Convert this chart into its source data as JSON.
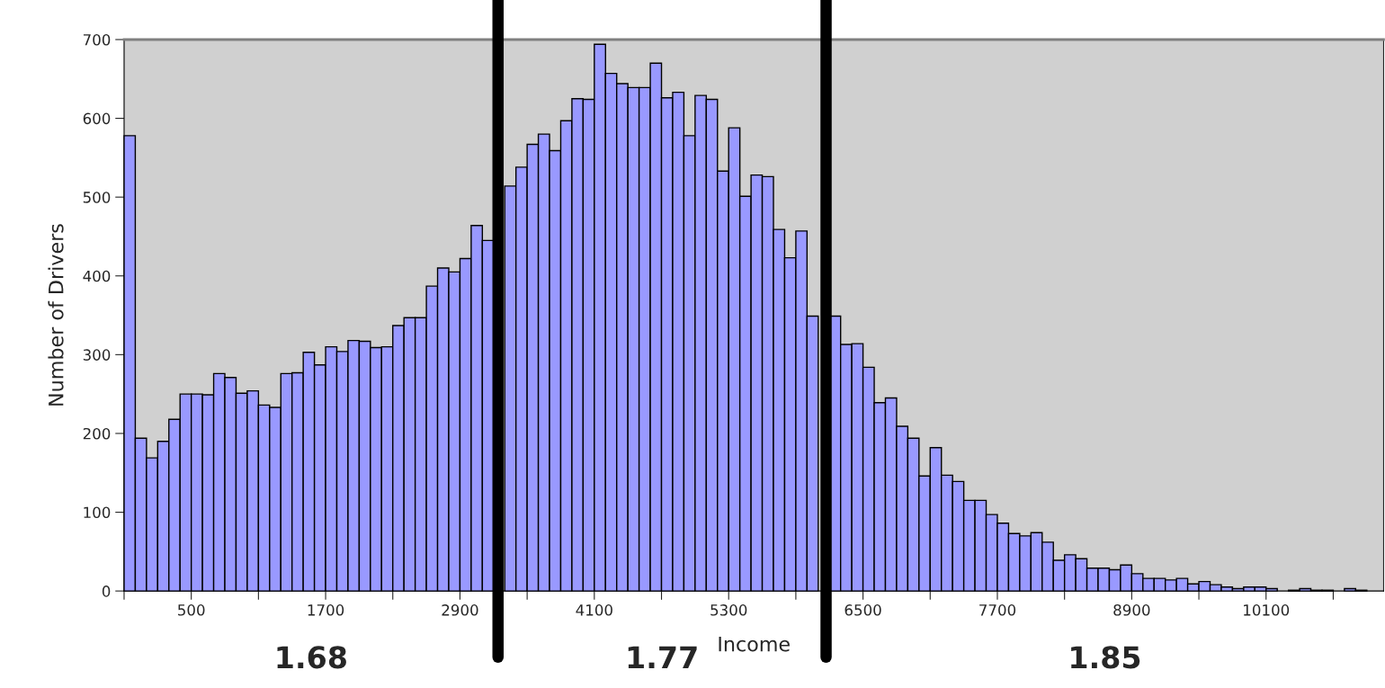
{
  "chart_data": {
    "type": "histogram",
    "xlabel": "Income",
    "ylabel": "Number of Drivers",
    "color": "#9999ff",
    "bins": [
      -100,
      0,
      100,
      200,
      300,
      400,
      500,
      600,
      700,
      800,
      900,
      1000,
      1100,
      1200,
      1300,
      1400,
      1500,
      1600,
      1700,
      1800,
      1900,
      2000,
      2100,
      2200,
      2300,
      2400,
      2500,
      2600,
      2700,
      2800,
      2900,
      3000,
      3100,
      3200,
      3300,
      3400,
      3500,
      3600,
      3700,
      3800,
      3900,
      4000,
      4100,
      4200,
      4300,
      4400,
      4500,
      4600,
      4700,
      4800,
      4900,
      5000,
      5100,
      5200,
      5300,
      5400,
      5500,
      5600,
      5700,
      5800,
      5900,
      6000,
      6100,
      6200,
      6300,
      6400,
      6500,
      6600,
      6700,
      6800,
      6900,
      7000,
      7100,
      7200,
      7300,
      7400,
      7500,
      7600,
      7700,
      7800,
      7900,
      8000,
      8100,
      8200,
      8300,
      8400,
      8500,
      8600,
      8700,
      8800,
      8900,
      9000,
      9100,
      9200,
      9300,
      9400,
      9500,
      9600,
      9700,
      9800,
      9900,
      10000,
      10100,
      10200,
      10300,
      10400,
      10500,
      10600,
      10700,
      10800,
      10900,
      11000,
      11100
    ],
    "values": [
      578,
      194,
      169,
      190,
      218,
      250,
      250,
      249,
      276,
      271,
      251,
      254,
      236,
      233,
      276,
      277,
      303,
      287,
      310,
      304,
      318,
      317,
      309,
      310,
      337,
      347,
      347,
      387,
      410,
      405,
      422,
      464,
      445,
      null,
      514,
      538,
      567,
      580,
      559,
      597,
      625,
      624,
      694,
      657,
      644,
      639,
      639,
      670,
      626,
      633,
      578,
      629,
      624,
      533,
      588,
      501,
      528,
      526,
      459,
      423,
      457,
      349,
      null,
      349,
      313,
      314,
      284,
      239,
      245,
      209,
      194,
      146,
      182,
      147,
      139,
      115,
      115,
      97,
      86,
      73,
      70,
      74,
      62,
      39,
      46,
      41,
      29,
      29,
      27,
      33,
      22,
      16,
      16,
      14,
      16,
      9,
      12,
      8,
      5,
      3,
      5,
      5,
      3,
      0,
      1,
      3,
      1,
      1,
      0,
      3,
      1,
      0
    ],
    "xlim": [
      -100,
      11150
    ],
    "xticks": [
      {
        "value": -100,
        "label": null
      },
      500,
      {
        "value": 1100,
        "label": null
      },
      1700,
      {
        "value": 2300,
        "label": null
      },
      2900,
      {
        "value": 3500,
        "label": null
      },
      4100,
      {
        "value": 4700,
        "label": null
      },
      5300,
      {
        "value": 5900,
        "label": null
      },
      6500,
      {
        "value": 7100,
        "label": null
      },
      7700,
      {
        "value": 8300,
        "label": null
      },
      8900,
      {
        "value": 9500,
        "label": null
      },
      10100,
      {
        "value": 10700,
        "label": null
      }
    ],
    "ylim": [
      0,
      700
    ],
    "yticks": [
      0,
      100,
      200,
      300,
      400,
      500,
      600,
      700
    ],
    "ref_lines": [
      {
        "axis": "x",
        "value": 3240,
        "color": "#000000"
      },
      {
        "axis": "x",
        "value": 6170,
        "color": "#000000"
      }
    ],
    "annotations": [
      "1.68",
      "1.77",
      "1.85"
    ]
  }
}
